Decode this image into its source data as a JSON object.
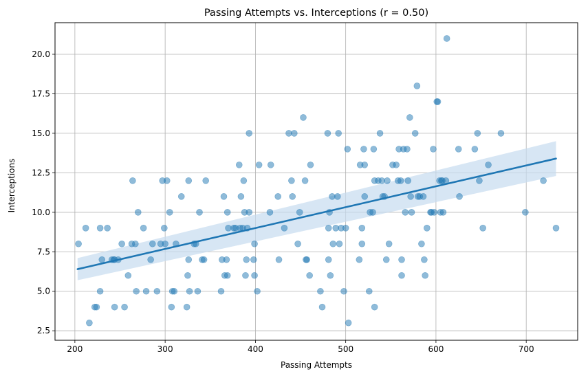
{
  "chart_data": {
    "type": "scatter",
    "title": "Passing Attempts vs. Interceptions (r = 0.50)",
    "xlabel": "Passing Attempts",
    "ylabel": "Interceptions",
    "xlim": [
      178,
      757
    ],
    "ylim": [
      1.9,
      22.0
    ],
    "xticks": [
      200,
      300,
      400,
      500,
      600,
      700
    ],
    "yticks": [
      2.5,
      5.0,
      7.5,
      10.0,
      12.5,
      15.0,
      17.5,
      20.0
    ],
    "xtick_labels": [
      "200",
      "300",
      "400",
      "500",
      "600",
      "700"
    ],
    "ytick_labels": [
      "2.5",
      "5.0",
      "7.5",
      "10.0",
      "12.5",
      "15.0",
      "17.5",
      "20.0"
    ],
    "grid": true,
    "legend": "none",
    "point_color": "#1f77b4",
    "point_alpha": 0.5,
    "regression": {
      "x_start": 203,
      "x_end": 733,
      "y_start": 6.4,
      "y_end": 13.4,
      "ci_start": [
        5.7,
        7.1
      ],
      "ci_end": [
        12.3,
        14.5
      ],
      "color": "#1f77b4",
      "band_color": "#c6dbef"
    },
    "points": [
      [
        204,
        8
      ],
      [
        212,
        9
      ],
      [
        216,
        3
      ],
      [
        222,
        4
      ],
      [
        224,
        4
      ],
      [
        228,
        9
      ],
      [
        228,
        5
      ],
      [
        230,
        7
      ],
      [
        236,
        9
      ],
      [
        241,
        7
      ],
      [
        243,
        7
      ],
      [
        244,
        4
      ],
      [
        244,
        7
      ],
      [
        248,
        7
      ],
      [
        252,
        8
      ],
      [
        255,
        4
      ],
      [
        259,
        6
      ],
      [
        263,
        8
      ],
      [
        264,
        12
      ],
      [
        267,
        8
      ],
      [
        268,
        5
      ],
      [
        270,
        10
      ],
      [
        276,
        9
      ],
      [
        279,
        5
      ],
      [
        284,
        7
      ],
      [
        286,
        8
      ],
      [
        291,
        5
      ],
      [
        295,
        8
      ],
      [
        297,
        12
      ],
      [
        299,
        9
      ],
      [
        300,
        8
      ],
      [
        302,
        12
      ],
      [
        305,
        10
      ],
      [
        307,
        4
      ],
      [
        308,
        5
      ],
      [
        310,
        5
      ],
      [
        312,
        8
      ],
      [
        318,
        11
      ],
      [
        324,
        4
      ],
      [
        325,
        6
      ],
      [
        326,
        7
      ],
      [
        326,
        12
      ],
      [
        327,
        5
      ],
      [
        332,
        8
      ],
      [
        334,
        8
      ],
      [
        336,
        5
      ],
      [
        338,
        10
      ],
      [
        341,
        7
      ],
      [
        343,
        7
      ],
      [
        345,
        12
      ],
      [
        362,
        5
      ],
      [
        363,
        7
      ],
      [
        365,
        11
      ],
      [
        366,
        6
      ],
      [
        368,
        7
      ],
      [
        369,
        6
      ],
      [
        369,
        10
      ],
      [
        370,
        9
      ],
      [
        376,
        9
      ],
      [
        378,
        9
      ],
      [
        382,
        13
      ],
      [
        383,
        9
      ],
      [
        384,
        11
      ],
      [
        386,
        9
      ],
      [
        387,
        12
      ],
      [
        388,
        10
      ],
      [
        389,
        6
      ],
      [
        390,
        7
      ],
      [
        391,
        9
      ],
      [
        393,
        10
      ],
      [
        393,
        15
      ],
      [
        398,
        7
      ],
      [
        399,
        6
      ],
      [
        399,
        8
      ],
      [
        402,
        5
      ],
      [
        404,
        13
      ],
      [
        416,
        10
      ],
      [
        417,
        13
      ],
      [
        425,
        11
      ],
      [
        426,
        7
      ],
      [
        432,
        9
      ],
      [
        437,
        15
      ],
      [
        440,
        12
      ],
      [
        441,
        11
      ],
      [
        443,
        15
      ],
      [
        447,
        8
      ],
      [
        449,
        10
      ],
      [
        453,
        16
      ],
      [
        455,
        12
      ],
      [
        456,
        7
      ],
      [
        457,
        7
      ],
      [
        460,
        6
      ],
      [
        461,
        13
      ],
      [
        472,
        5
      ],
      [
        474,
        4
      ],
      [
        480,
        15
      ],
      [
        481,
        9
      ],
      [
        481,
        7
      ],
      [
        482,
        10
      ],
      [
        483,
        6
      ],
      [
        485,
        11
      ],
      [
        486,
        8
      ],
      [
        489,
        9
      ],
      [
        491,
        11
      ],
      [
        492,
        15
      ],
      [
        493,
        8
      ],
      [
        495,
        9
      ],
      [
        498,
        5
      ],
      [
        500,
        9
      ],
      [
        502,
        14
      ],
      [
        503,
        3
      ],
      [
        515,
        7
      ],
      [
        516,
        13
      ],
      [
        518,
        8
      ],
      [
        518,
        9
      ],
      [
        520,
        14
      ],
      [
        521,
        11
      ],
      [
        521,
        13
      ],
      [
        526,
        5
      ],
      [
        527,
        10
      ],
      [
        530,
        10
      ],
      [
        531,
        14
      ],
      [
        532,
        4
      ],
      [
        532,
        12
      ],
      [
        536,
        12
      ],
      [
        538,
        15
      ],
      [
        540,
        12
      ],
      [
        541,
        11
      ],
      [
        543,
        11
      ],
      [
        545,
        7
      ],
      [
        546,
        12
      ],
      [
        548,
        8
      ],
      [
        552,
        13
      ],
      [
        556,
        13
      ],
      [
        558,
        12
      ],
      [
        559,
        14
      ],
      [
        561,
        12
      ],
      [
        562,
        6
      ],
      [
        562,
        7
      ],
      [
        564,
        14
      ],
      [
        566,
        10
      ],
      [
        568,
        14
      ],
      [
        569,
        12
      ],
      [
        571,
        16
      ],
      [
        572,
        11
      ],
      [
        573,
        10
      ],
      [
        577,
        15
      ],
      [
        579,
        18
      ],
      [
        580,
        11
      ],
      [
        582,
        11
      ],
      [
        584,
        8
      ],
      [
        586,
        11
      ],
      [
        587,
        7
      ],
      [
        588,
        6
      ],
      [
        590,
        9
      ],
      [
        594,
        10
      ],
      [
        595,
        10
      ],
      [
        597,
        14
      ],
      [
        598,
        10
      ],
      [
        601,
        17
      ],
      [
        602,
        17
      ],
      [
        604,
        12
      ],
      [
        605,
        10
      ],
      [
        606,
        12
      ],
      [
        607,
        12
      ],
      [
        608,
        10
      ],
      [
        611,
        12
      ],
      [
        612,
        21
      ],
      [
        625,
        14
      ],
      [
        626,
        11
      ],
      [
        643,
        14
      ],
      [
        646,
        15
      ],
      [
        648,
        12
      ],
      [
        652,
        9
      ],
      [
        658,
        13
      ],
      [
        672,
        15
      ],
      [
        699,
        10
      ],
      [
        719,
        12
      ],
      [
        733,
        9
      ]
    ]
  }
}
